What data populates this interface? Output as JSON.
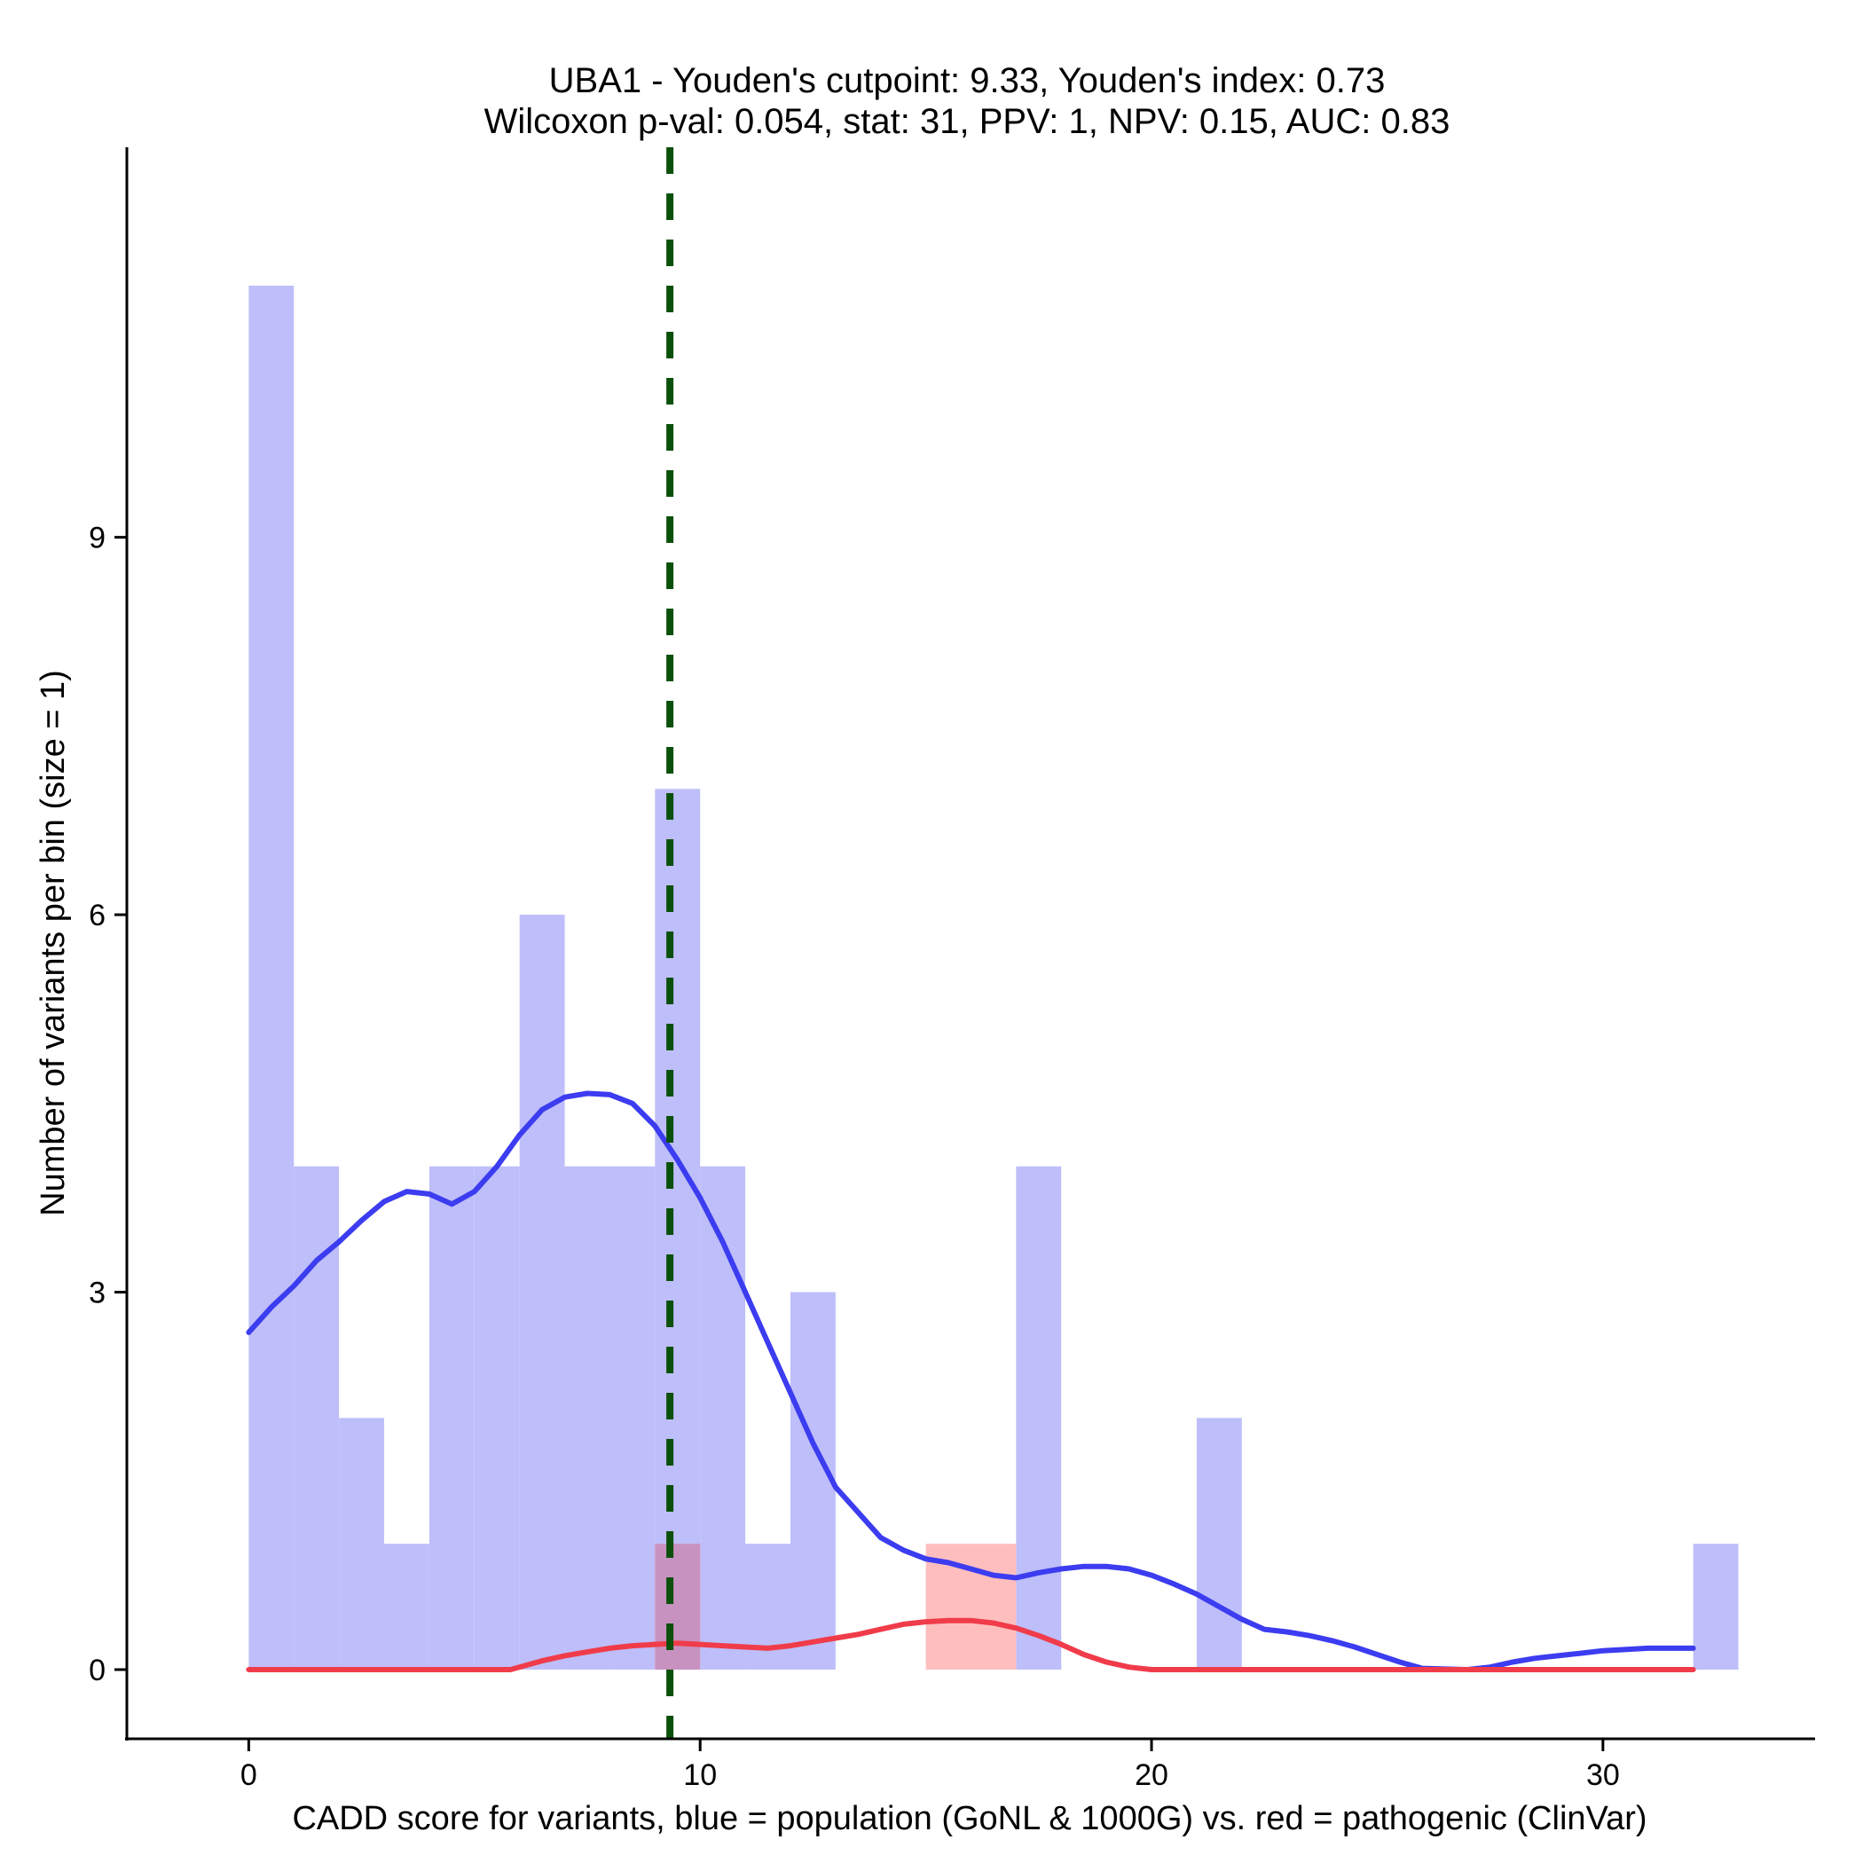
{
  "chart_data": {
    "type": "histogram-density",
    "title_line1": "UBA1 - Youden's cutpoint: 9.33, Youden's index: 0.73",
    "title_line2": "Wilcoxon p-val: 0.054, stat: 31, PPV: 1, NPV: 0.15, AUC: 0.83",
    "xlabel": "CADD score for variants, blue = population (GoNL & 1000G) vs. red = pathogenic (ClinVar)",
    "ylabel": "Number of variants per bin (size = 1)",
    "xlim": [
      -2.7,
      34.7
    ],
    "ylim": [
      -0.55,
      12.1
    ],
    "xticks": [
      0,
      10,
      20,
      30
    ],
    "xtick_labels": [
      "0",
      "10",
      "20",
      "30"
    ],
    "yticks": [
      0,
      3,
      6,
      9
    ],
    "ytick_labels": [
      "0",
      "3",
      "6",
      "9"
    ],
    "bin_width": 1,
    "cutpoint": 9.33,
    "colors": {
      "population_bar": "#bebefa",
      "pathogenic_bar": "#ffbebe",
      "overlap_bar": "#c892c0",
      "population_line": "#3c3cf0",
      "pathogenic_line": "#f03c4a",
      "cutpoint_line": "#0a500a"
    },
    "series": [
      {
        "name": "population (GoNL & 1000G)",
        "bins": [
          {
            "x": 0,
            "count": 11
          },
          {
            "x": 1,
            "count": 4
          },
          {
            "x": 2,
            "count": 2
          },
          {
            "x": 3,
            "count": 1
          },
          {
            "x": 4,
            "count": 4
          },
          {
            "x": 5,
            "count": 4
          },
          {
            "x": 6,
            "count": 6
          },
          {
            "x": 7,
            "count": 4
          },
          {
            "x": 8,
            "count": 4
          },
          {
            "x": 9,
            "count": 7
          },
          {
            "x": 10,
            "count": 4
          },
          {
            "x": 11,
            "count": 1
          },
          {
            "x": 12,
            "count": 3
          },
          {
            "x": 17,
            "count": 4
          },
          {
            "x": 21,
            "count": 2
          },
          {
            "x": 32,
            "count": 1
          }
        ],
        "density": [
          [
            0,
            2.68
          ],
          [
            0.5,
            2.88
          ],
          [
            1,
            3.05
          ],
          [
            1.5,
            3.25
          ],
          [
            2,
            3.4
          ],
          [
            2.5,
            3.57
          ],
          [
            3,
            3.72
          ],
          [
            3.5,
            3.8
          ],
          [
            4,
            3.78
          ],
          [
            4.5,
            3.7
          ],
          [
            5,
            3.8
          ],
          [
            5.5,
            4.0
          ],
          [
            6,
            4.25
          ],
          [
            6.5,
            4.45
          ],
          [
            7,
            4.55
          ],
          [
            7.5,
            4.58
          ],
          [
            8,
            4.57
          ],
          [
            8.5,
            4.5
          ],
          [
            9,
            4.32
          ],
          [
            9.5,
            4.05
          ],
          [
            10,
            3.75
          ],
          [
            10.5,
            3.4
          ],
          [
            11,
            3.0
          ],
          [
            11.5,
            2.6
          ],
          [
            12,
            2.2
          ],
          [
            12.5,
            1.8
          ],
          [
            13,
            1.45
          ],
          [
            13.5,
            1.25
          ],
          [
            14,
            1.05
          ],
          [
            14.5,
            0.95
          ],
          [
            15,
            0.88
          ],
          [
            15.5,
            0.85
          ],
          [
            16,
            0.8
          ],
          [
            16.5,
            0.75
          ],
          [
            17,
            0.73
          ],
          [
            17.5,
            0.77
          ],
          [
            18,
            0.8
          ],
          [
            18.5,
            0.82
          ],
          [
            19,
            0.82
          ],
          [
            19.5,
            0.8
          ],
          [
            20,
            0.75
          ],
          [
            20.5,
            0.68
          ],
          [
            21,
            0.6
          ],
          [
            21.5,
            0.5
          ],
          [
            22,
            0.4
          ],
          [
            22.5,
            0.32
          ],
          [
            23,
            0.3
          ],
          [
            23.5,
            0.27
          ],
          [
            24,
            0.23
          ],
          [
            24.5,
            0.18
          ],
          [
            25,
            0.12
          ],
          [
            25.5,
            0.06
          ],
          [
            26,
            0.01
          ],
          [
            27,
            0.0
          ],
          [
            27.5,
            0.02
          ],
          [
            28,
            0.06
          ],
          [
            28.5,
            0.09
          ],
          [
            29,
            0.11
          ],
          [
            29.5,
            0.13
          ],
          [
            30,
            0.15
          ],
          [
            31,
            0.17
          ],
          [
            32,
            0.17
          ]
        ]
      },
      {
        "name": "pathogenic (ClinVar)",
        "bins": [
          {
            "x": 9,
            "count": 1
          },
          {
            "x": 15,
            "count": 1
          },
          {
            "x": 16,
            "count": 1
          }
        ],
        "density": [
          [
            0,
            0.0
          ],
          [
            5.8,
            0.0
          ],
          [
            6.5,
            0.07
          ],
          [
            7,
            0.11
          ],
          [
            7.5,
            0.14
          ],
          [
            8,
            0.17
          ],
          [
            8.5,
            0.19
          ],
          [
            9,
            0.2
          ],
          [
            9.5,
            0.21
          ],
          [
            10,
            0.2
          ],
          [
            10.5,
            0.19
          ],
          [
            11,
            0.18
          ],
          [
            11.5,
            0.17
          ],
          [
            12,
            0.19
          ],
          [
            12.5,
            0.22
          ],
          [
            13,
            0.25
          ],
          [
            13.5,
            0.28
          ],
          [
            14,
            0.32
          ],
          [
            14.5,
            0.36
          ],
          [
            15,
            0.38
          ],
          [
            15.5,
            0.39
          ],
          [
            16,
            0.39
          ],
          [
            16.5,
            0.37
          ],
          [
            17,
            0.33
          ],
          [
            17.5,
            0.27
          ],
          [
            18,
            0.2
          ],
          [
            18.5,
            0.12
          ],
          [
            19,
            0.06
          ],
          [
            19.5,
            0.02
          ],
          [
            20,
            0.0
          ],
          [
            32,
            0.0
          ]
        ]
      }
    ]
  }
}
